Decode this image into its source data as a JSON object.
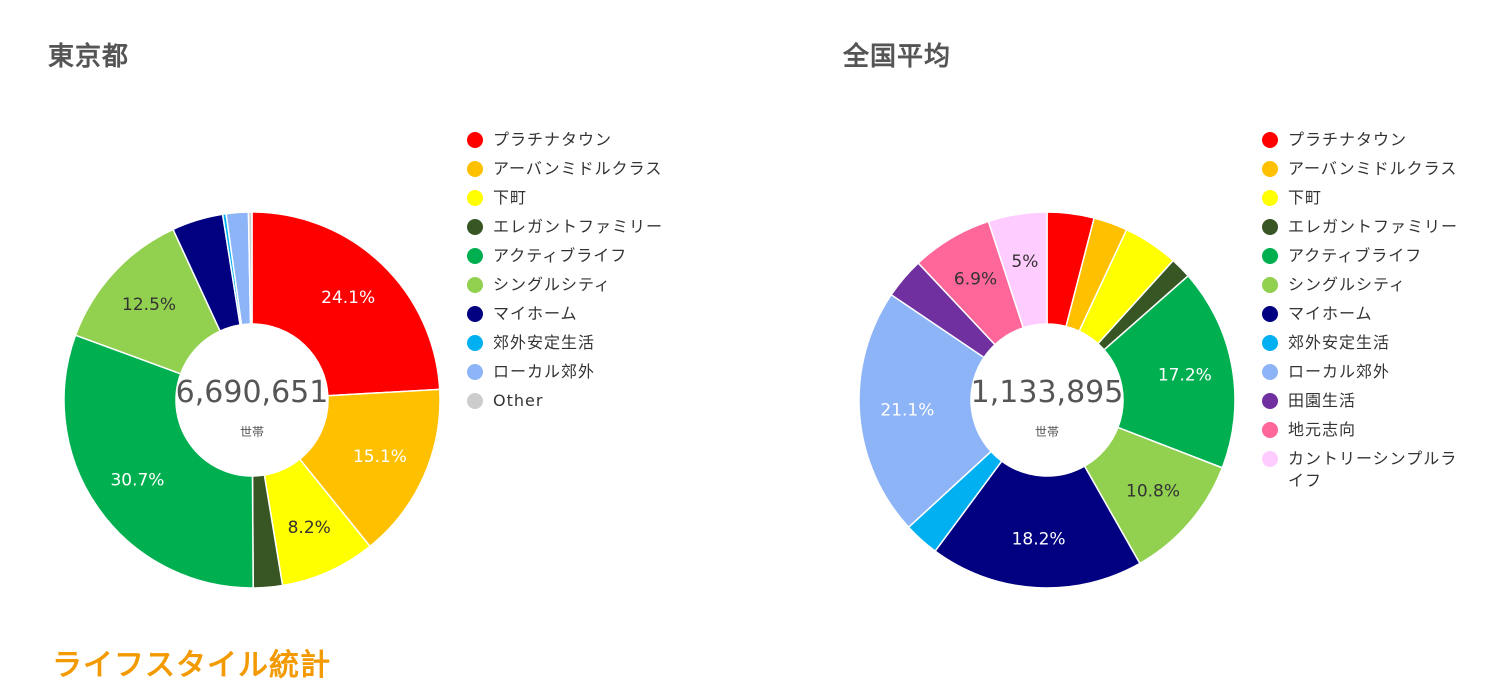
{
  "section_title": "ライフスタイル統計",
  "chart_data": [
    {
      "type": "pie",
      "title": "東京都",
      "center_total": "6,690,651",
      "center_unit": "世帯",
      "legend_placement": "right",
      "categories": [
        "プラチナタウン",
        "アーバンミドルクラス",
        "下町",
        "エレガントファミリー",
        "アクティブライフ",
        "シングルシティ",
        "マイホーム",
        "郊外安定生活",
        "ローカル郊外",
        "Other"
      ],
      "values": [
        24.1,
        15.1,
        8.2,
        2.5,
        30.7,
        12.5,
        4.4,
        0.3,
        1.9,
        0.3
      ],
      "data_labels": [
        "24.1%",
        "15.1%",
        "8.2%",
        "",
        "30.7%",
        "12.5%",
        "",
        "",
        "",
        ""
      ],
      "colors": [
        "#ff0000",
        "#ffc000",
        "#ffff00",
        "#375623",
        "#00b050",
        "#92d050",
        "#000080",
        "#00b0f0",
        "#8eb4f8",
        "#cccccc"
      ],
      "label_colors": [
        "#ffffff",
        "#ffffff",
        "#333333",
        "#ffffff",
        "#ffffff",
        "#333333",
        "#ffffff",
        "#333333",
        "#333333",
        "#333333"
      ]
    },
    {
      "type": "pie",
      "title": "全国平均",
      "center_total": "1,133,895",
      "center_unit": "世帯",
      "legend_placement": "right",
      "categories": [
        "プラチナタウン",
        "アーバンミドルクラス",
        "下町",
        "エレガントファミリー",
        "アクティブライフ",
        "シングルシティ",
        "マイホーム",
        "郊外安定生活",
        "ローカル郊外",
        "田園生活",
        "地元志向",
        "カントリーシンプルライフ"
      ],
      "values": [
        4.0,
        2.9,
        4.7,
        1.8,
        17.2,
        10.8,
        18.2,
        3.0,
        21.1,
        3.5,
        6.9,
        5.0
      ],
      "data_labels": [
        "",
        "",
        "",
        "",
        "17.2%",
        "10.8%",
        "18.2%",
        "",
        "21.1%",
        "",
        "6.9%",
        "5%"
      ],
      "colors": [
        "#ff0000",
        "#ffc000",
        "#ffff00",
        "#375623",
        "#00b050",
        "#92d050",
        "#000080",
        "#00b0f0",
        "#8eb4f8",
        "#7030a0",
        "#ff6699",
        "#ffccff"
      ],
      "label_colors": [
        "#ffffff",
        "#ffffff",
        "#333333",
        "#ffffff",
        "#ffffff",
        "#333333",
        "#ffffff",
        "#333333",
        "#ffffff",
        "#ffffff",
        "#333333",
        "#333333"
      ]
    }
  ]
}
